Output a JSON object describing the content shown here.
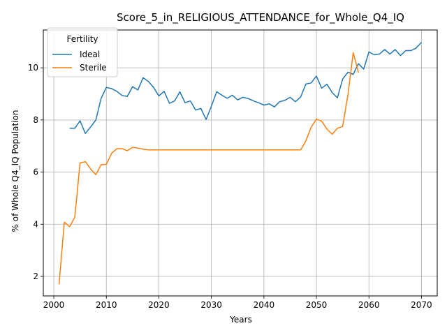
{
  "chart_data": {
    "type": "line",
    "title": "Score_5_in_RELIGIOUS_ATTENDANCE_for_Whole_Q4_IQ",
    "xlabel": "Years",
    "ylabel": "% of Whole Q4_IQ Population",
    "xlim": [
      1998,
      2073
    ],
    "ylim": [
      1.25,
      11.45
    ],
    "xticks": [
      2000,
      2010,
      2020,
      2030,
      2040,
      2050,
      2060,
      2070
    ],
    "yticks": [
      2,
      4,
      6,
      8,
      10
    ],
    "grid": true,
    "legend": {
      "title": "Fertility",
      "placement": "top-left"
    },
    "series": [
      {
        "name": "Ideal",
        "color": "#1f77b4",
        "x": [
          2003,
          2004,
          2005,
          2006,
          2007,
          2008,
          2009,
          2010,
          2011,
          2012,
          2013,
          2014,
          2015,
          2016,
          2017,
          2018,
          2019,
          2020,
          2021,
          2022,
          2023,
          2024,
          2025,
          2026,
          2027,
          2028,
          2029,
          2030,
          2031,
          2032,
          2033,
          2034,
          2035,
          2036,
          2037,
          2038,
          2039,
          2040,
          2041,
          2042,
          2043,
          2044,
          2045,
          2046,
          2047,
          2048,
          2049,
          2050,
          2051,
          2052,
          2053,
          2054,
          2055,
          2056,
          2057,
          2058,
          2059,
          2060,
          2061,
          2062,
          2063,
          2064,
          2065,
          2066,
          2067,
          2068,
          2069,
          2070
        ],
        "y": [
          7.68,
          7.68,
          7.97,
          7.48,
          7.73,
          8.0,
          8.82,
          9.25,
          9.2,
          9.1,
          8.94,
          8.9,
          9.28,
          9.15,
          9.62,
          9.48,
          9.25,
          8.92,
          9.1,
          8.64,
          8.73,
          9.08,
          8.66,
          8.73,
          8.38,
          8.44,
          8.02,
          8.52,
          9.08,
          8.95,
          8.83,
          8.95,
          8.77,
          8.87,
          8.82,
          8.73,
          8.66,
          8.57,
          8.62,
          8.5,
          8.7,
          8.75,
          8.87,
          8.7,
          8.88,
          9.38,
          9.42,
          9.68,
          9.22,
          9.37,
          9.05,
          8.85,
          9.57,
          9.83,
          9.75,
          10.16,
          9.95,
          10.61,
          10.5,
          10.53,
          10.7,
          10.53,
          10.7,
          10.47,
          10.66,
          10.66,
          10.76,
          10.98
        ]
      },
      {
        "name": "Sterile",
        "color": "#ff7f0e",
        "x": [
          2001,
          2002,
          2003,
          2004,
          2005,
          2006,
          2007,
          2008,
          2009,
          2010,
          2011,
          2012,
          2013,
          2014,
          2015,
          2016,
          2017,
          2018,
          2019,
          2020,
          2025,
          2030,
          2035,
          2040,
          2045,
          2047,
          2048,
          2049,
          2050,
          2051,
          2052,
          2053,
          2054,
          2055,
          2056,
          2057,
          2058
        ],
        "y": [
          1.7,
          4.08,
          3.9,
          4.27,
          6.35,
          6.4,
          6.12,
          5.9,
          6.28,
          6.3,
          6.72,
          6.9,
          6.9,
          6.82,
          6.95,
          6.92,
          6.88,
          6.85,
          6.85,
          6.85,
          6.85,
          6.85,
          6.85,
          6.85,
          6.85,
          6.85,
          7.2,
          7.72,
          8.03,
          7.95,
          7.65,
          7.45,
          7.68,
          7.75,
          8.97,
          10.58,
          9.82
        ]
      }
    ]
  }
}
